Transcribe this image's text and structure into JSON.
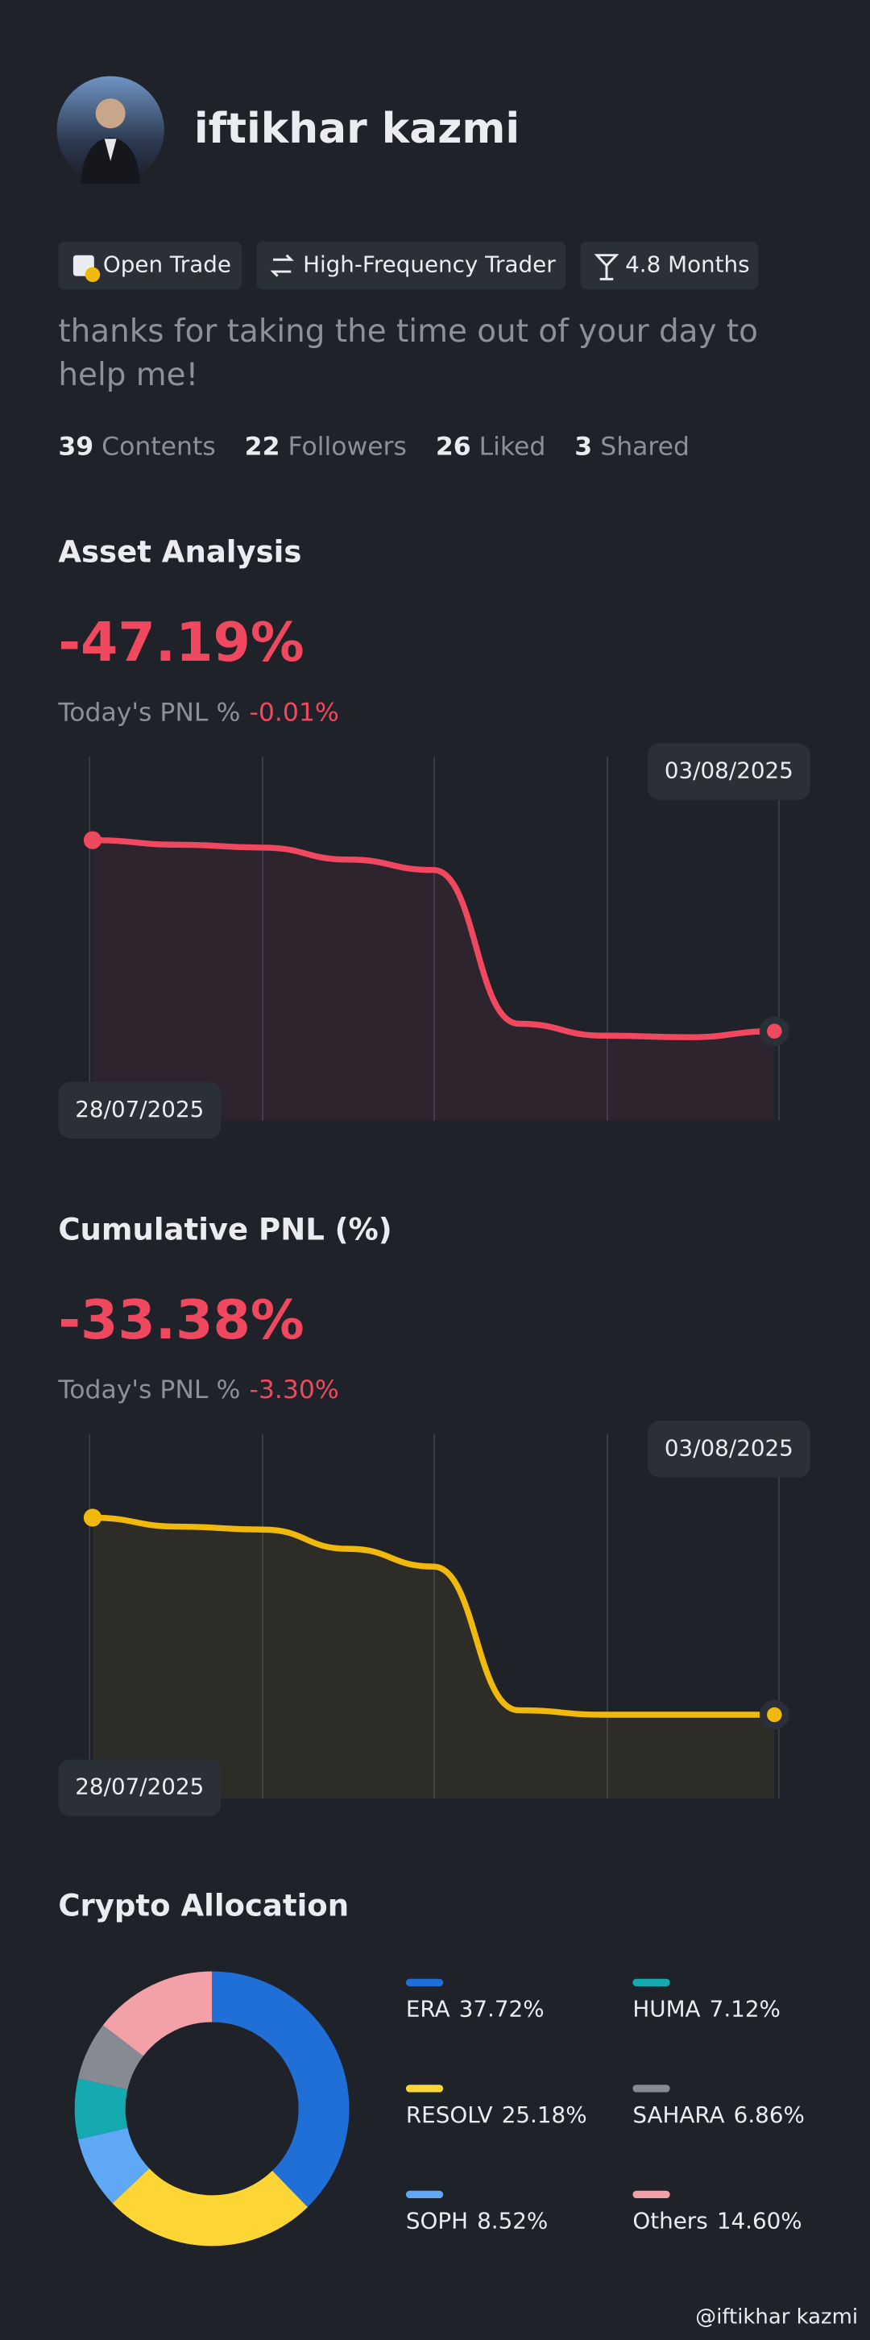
{
  "profile": {
    "name": "iftikhar kazmi",
    "tags": [
      "Open Trade",
      "High-Frequency Trader",
      "4.8 Months"
    ],
    "bio": "thanks for taking the time out of your day to help me!",
    "stats": [
      {
        "value": 39,
        "label": "Contents"
      },
      {
        "value": 22,
        "label": "Followers"
      },
      {
        "value": 26,
        "label": "Liked"
      },
      {
        "value": 3,
        "label": "Shared"
      }
    ]
  },
  "charts": [
    {
      "type": "line",
      "title": "Asset Analysis",
      "headline": "-47.19%",
      "today_label": "Today's PNL %",
      "today_value": "-0.01%",
      "color": "#f0485e",
      "categories": [
        "28/07/2025",
        null,
        null,
        null,
        null,
        null,
        null,
        null,
        "03/08/2025"
      ],
      "values": [
        0,
        -1.11,
        -1.84,
        -4.79,
        -7.37,
        -45.35,
        -48.3,
        -48.67,
        -47.19
      ]
    },
    {
      "type": "line",
      "title": "Cumulative PNL (%)",
      "headline": "-33.38%",
      "today_label": "Today's PNL %",
      "today_value": "-3.30%",
      "color": "#f0b90b",
      "categories": [
        "28/07/2025",
        null,
        null,
        null,
        null,
        null,
        null,
        null,
        "03/08/2025"
      ],
      "values": [
        0,
        -1.51,
        -2.01,
        -5.27,
        -8.28,
        -32.63,
        -33.38,
        -33.38,
        -33.38
      ]
    }
  ],
  "allocation": {
    "type": "pie",
    "title": "Crypto Allocation",
    "categories": [
      "ERA",
      "RESOLV",
      "SOPH",
      "HUMA",
      "SAHARA",
      "Others"
    ],
    "values": [
      37.72,
      25.18,
      8.52,
      7.12,
      6.86,
      14.6
    ],
    "value_labels": [
      "37.72%",
      "25.18%",
      "8.52%",
      "7.12%",
      "6.86%",
      "14.60%"
    ],
    "colors": [
      "#1f6fd6",
      "#fdd535",
      "#5ea8f5",
      "#14aab0",
      "#868b93",
      "#f4a0a8"
    ]
  },
  "watermark": "@iftikhar kazmi"
}
